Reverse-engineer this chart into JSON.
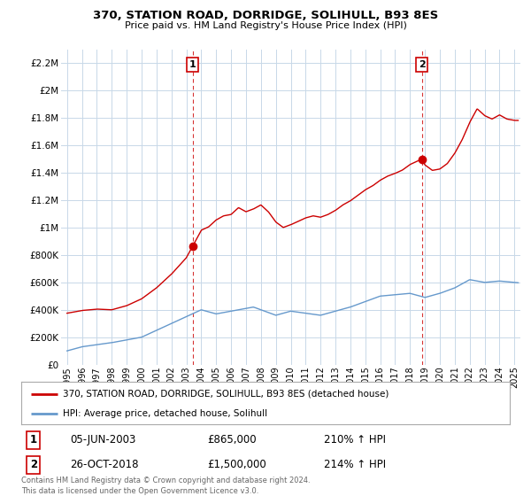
{
  "title": "370, STATION ROAD, DORRIDGE, SOLIHULL, B93 8ES",
  "subtitle": "Price paid vs. HM Land Registry's House Price Index (HPI)",
  "legend_line1": "370, STATION ROAD, DORRIDGE, SOLIHULL, B93 8ES (detached house)",
  "legend_line2": "HPI: Average price, detached house, Solihull",
  "annotation1_label": "1",
  "annotation1_date": "05-JUN-2003",
  "annotation1_price": "£865,000",
  "annotation1_hpi": "210% ↑ HPI",
  "annotation2_label": "2",
  "annotation2_date": "26-OCT-2018",
  "annotation2_price": "£1,500,000",
  "annotation2_hpi": "214% ↑ HPI",
  "footer": "Contains HM Land Registry data © Crown copyright and database right 2024.\nThis data is licensed under the Open Government Licence v3.0.",
  "ylim": [
    0,
    2300000
  ],
  "yticks": [
    0,
    200000,
    400000,
    600000,
    800000,
    1000000,
    1200000,
    1400000,
    1600000,
    1800000,
    2000000,
    2200000
  ],
  "hpi_color": "#6699cc",
  "price_color": "#cc0000",
  "dashed_color": "#cc0000",
  "bg_color": "#ffffff",
  "grid_color": "#c8d8e8",
  "annotation_box_color": "#cc0000",
  "p1_x": 2003.42,
  "p1_y": 865000,
  "p2_x": 2018.79,
  "p2_y": 1500000,
  "xlim_left": 1994.6,
  "xlim_right": 2025.4
}
